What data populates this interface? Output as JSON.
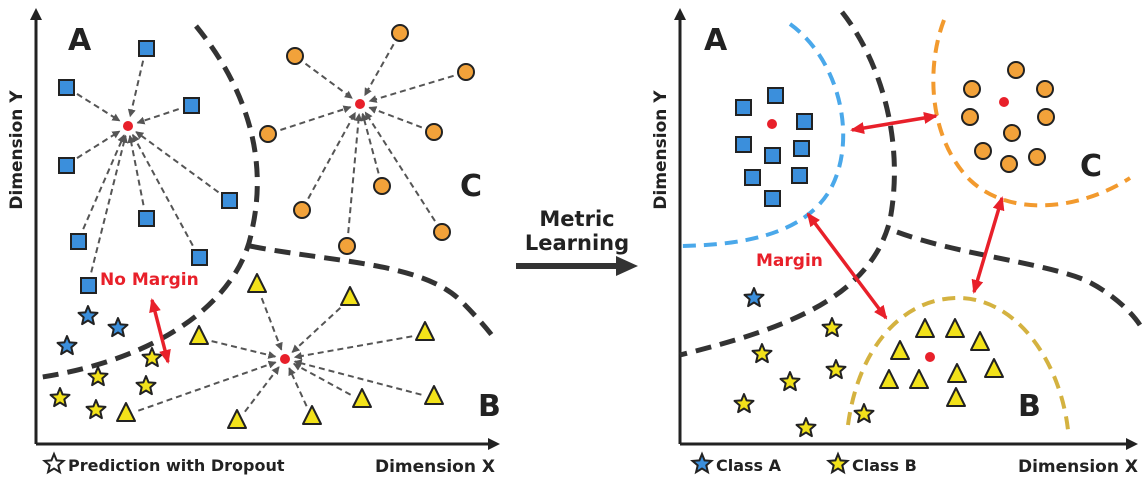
{
  "left_panel": {
    "region_labels": [
      "A",
      "B",
      "C"
    ],
    "y_axis_label": "Dimension Y",
    "x_axis_label": "Dimension X",
    "annotation": "No Margin",
    "legend_text": "Prediction with Dropout"
  },
  "transition": {
    "label_line1": "Metric",
    "label_line2": "Learning"
  },
  "right_panel": {
    "region_labels": [
      "A",
      "B",
      "C"
    ],
    "y_axis_label": "Dimension Y",
    "x_axis_label": "Dimension X",
    "annotation": "Margin",
    "legend": [
      {
        "label": "Class A",
        "color": "#3b8fdc"
      },
      {
        "label": "Class B",
        "color": "#f2e21a"
      }
    ]
  },
  "colors": {
    "class_a": "#3b8fdc",
    "class_b": "#f2e21a",
    "class_c": "#f2a23a",
    "center": "#e8202a",
    "boundary": "#333333",
    "margin_a": "#4aa8ea",
    "margin_c": "#f29a2e",
    "margin_b": "#d4b240",
    "arrow": "#e8202a"
  }
}
